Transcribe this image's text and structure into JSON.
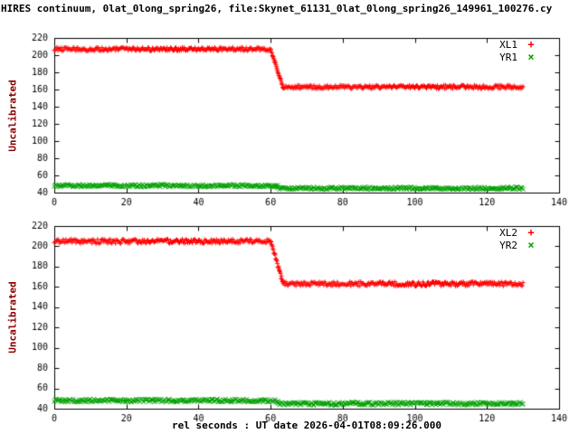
{
  "title": "HIRES continuum, 0lat_0long_spring26, file:Skynet_61131_0lat_0long_spring26_149961_100276.cy",
  "xlabel": "rel seconds : UT date 2026-04-01T08:09:26.000",
  "colors": {
    "red_series": "#ff0000",
    "green_series": "#00a000",
    "frame": "#000000",
    "ylabel_text": "#8b0000"
  },
  "chart_data": [
    {
      "type": "scatter",
      "title": "",
      "xlabel": "",
      "ylabel": "Uncalibrated",
      "xlim": [
        0,
        140
      ],
      "ylim": [
        40,
        220
      ],
      "xticks": [
        0,
        20,
        40,
        60,
        80,
        100,
        120,
        140
      ],
      "yticks": [
        40,
        60,
        80,
        100,
        120,
        140,
        160,
        180,
        200,
        220
      ],
      "grid": false,
      "legend_position": "top-right-inside",
      "series": [
        {
          "name": "XL1",
          "marker": "+",
          "marker_glyph": "+",
          "color": "#ff0000",
          "noise": 2.2,
          "segments": [
            {
              "x0": 0,
              "x1": 60,
              "y0": 207,
              "y1": 207
            },
            {
              "x0": 60,
              "x1": 63.5,
              "y0": 207,
              "y1": 163
            },
            {
              "x0": 63.5,
              "x1": 130,
              "y0": 163,
              "y1": 163
            }
          ]
        },
        {
          "name": "YR1",
          "marker": "x",
          "marker_glyph": "×",
          "color": "#00a000",
          "noise": 1.5,
          "segments": [
            {
              "x0": 0,
              "x1": 62,
              "y0": 48,
              "y1": 48
            },
            {
              "x0": 62,
              "x1": 130,
              "y0": 45,
              "y1": 45
            }
          ]
        }
      ]
    },
    {
      "type": "scatter",
      "title": "",
      "xlabel": "",
      "ylabel": "Uncalibrated",
      "xlim": [
        0,
        140
      ],
      "ylim": [
        40,
        220
      ],
      "xticks": [
        0,
        20,
        40,
        60,
        80,
        100,
        120,
        140
      ],
      "yticks": [
        40,
        60,
        80,
        100,
        120,
        140,
        160,
        180,
        200,
        220
      ],
      "grid": false,
      "legend_position": "top-right-inside",
      "series": [
        {
          "name": "XL2",
          "marker": "+",
          "marker_glyph": "+",
          "color": "#ff0000",
          "noise": 2.2,
          "segments": [
            {
              "x0": 0,
              "x1": 60,
              "y0": 205,
              "y1": 205
            },
            {
              "x0": 60,
              "x1": 63.5,
              "y0": 205,
              "y1": 163
            },
            {
              "x0": 63.5,
              "x1": 130,
              "y0": 163,
              "y1": 163
            }
          ]
        },
        {
          "name": "YR2",
          "marker": "x",
          "marker_glyph": "×",
          "color": "#00a000",
          "noise": 1.5,
          "segments": [
            {
              "x0": 0,
              "x1": 62,
              "y0": 48,
              "y1": 48
            },
            {
              "x0": 62,
              "x1": 130,
              "y0": 45,
              "y1": 45
            }
          ]
        }
      ]
    }
  ]
}
